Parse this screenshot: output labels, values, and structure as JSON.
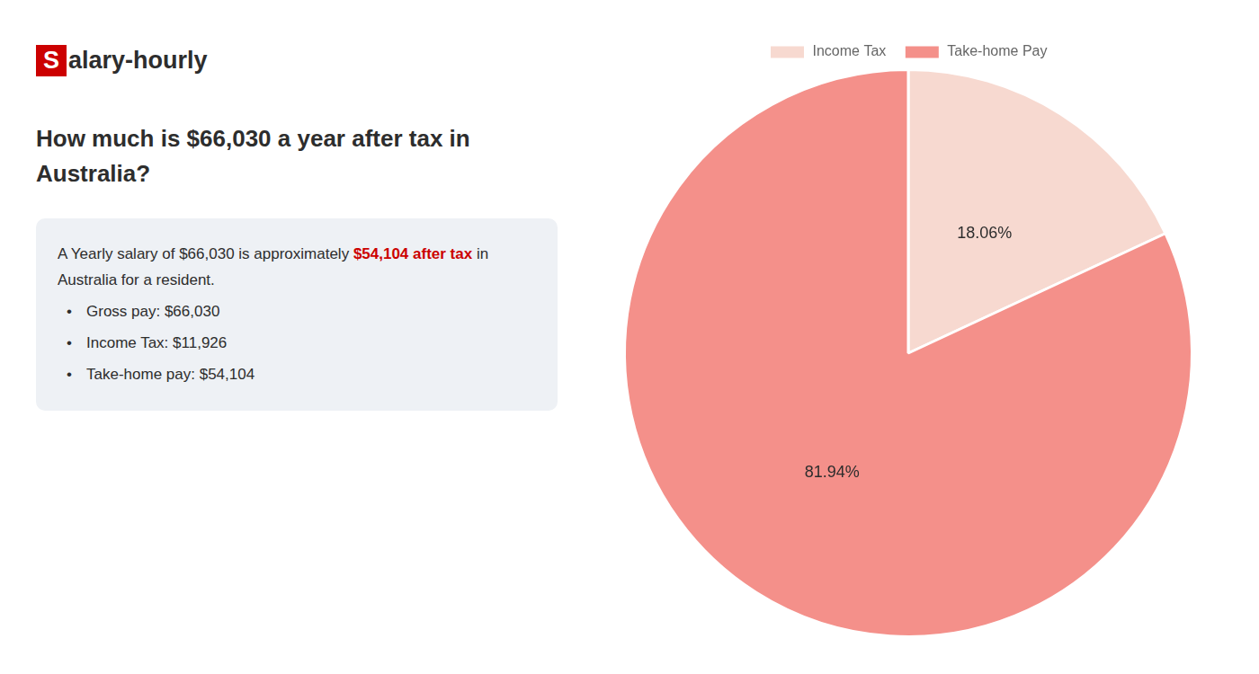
{
  "chart_data": {
    "type": "pie",
    "title": [
      "How much is $66,030 a year after tax in",
      "Australia?"
    ],
    "categories": [
      "Income Tax",
      "Take-home Pay"
    ],
    "values": [
      18.06,
      81.94
    ],
    "value_labels": [
      "18.06%",
      "81.94%"
    ],
    "colors": [
      "#f7d9d0",
      "#f4908a"
    ],
    "data_labels": true,
    "legend": "top",
    "annotations": [
      [
        {
          "text": "S",
          "color": "#cc0000"
        },
        {
          "text": "alary-hourly"
        }
      ],
      [
        {
          "text": "A Yearly salary of $66,030 is approximately "
        },
        {
          "text": "$54,104 after tax",
          "color": "#cc0000"
        },
        {
          "text": " in"
        }
      ],
      [
        {
          "text": "Australia for a resident."
        }
      ],
      [
        {
          "text": "•"
        },
        {
          "text": "Gross pay: $66,030"
        }
      ],
      [
        {
          "text": "•"
        },
        {
          "text": "Income Tax: $11,926"
        }
      ],
      [
        {
          "text": "•"
        },
        {
          "text": "Take-home pay: $54,104"
        }
      ]
    ]
  }
}
